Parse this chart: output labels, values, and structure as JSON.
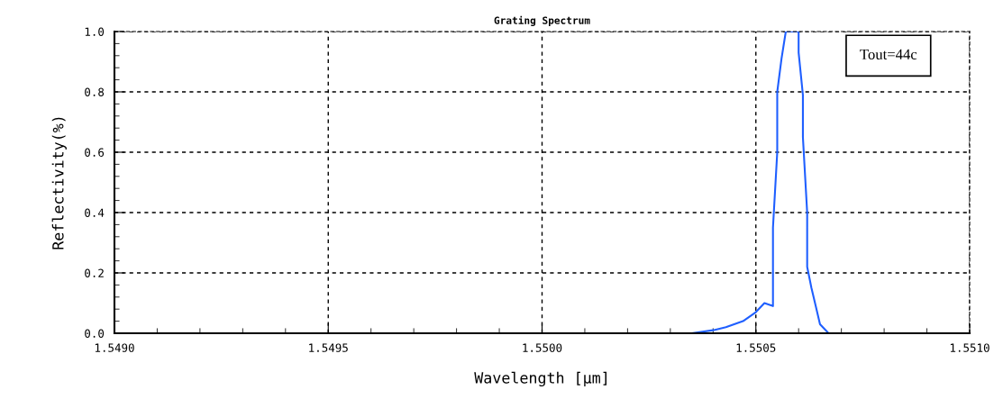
{
  "chart_data": {
    "type": "line",
    "title": "Grating Spectrum",
    "xlabel": "Wavelength [µm]",
    "ylabel": "Reflectivity(%)",
    "x": [
      1.55035,
      1.5504,
      1.55043,
      1.55047,
      1.5505,
      1.55052,
      1.55054,
      1.55054,
      1.55054,
      1.55055,
      1.55055,
      1.55056,
      1.55057,
      1.5506,
      1.5506,
      1.55061,
      1.55061,
      1.55062,
      1.55062,
      1.55063,
      1.55064,
      1.55065,
      1.55067,
      1.55079
    ],
    "series": [
      {
        "color": "#1f5fff",
        "values": [
          0.0,
          0.01,
          0.02,
          0.04,
          0.07,
          0.1,
          0.09,
          0.18,
          0.35,
          0.6,
          0.8,
          0.91,
          1.0,
          1.0,
          0.93,
          0.79,
          0.65,
          0.4,
          0.22,
          0.15,
          0.09,
          0.03,
          0.0,
          0.0
        ]
      }
    ],
    "xlim": [
      1.549,
      1.551
    ],
    "ylim": [
      0,
      1
    ],
    "xticks": [
      {
        "value": 1.549,
        "label": "1.5490"
      },
      {
        "value": 1.5495,
        "label": "1.5495"
      },
      {
        "value": 1.55,
        "label": "1.5500"
      },
      {
        "value": 1.5505,
        "label": "1.5505"
      },
      {
        "value": 1.551,
        "label": "1.5510"
      }
    ],
    "yticks": [
      {
        "value": 0,
        "label": "0.0"
      },
      0.2,
      0.4,
      0.6,
      0.8,
      {
        "value": 1,
        "label": "1.0"
      }
    ],
    "grid": true,
    "line_style": "solid",
    "annotations": [
      "Tout=44c"
    ]
  }
}
